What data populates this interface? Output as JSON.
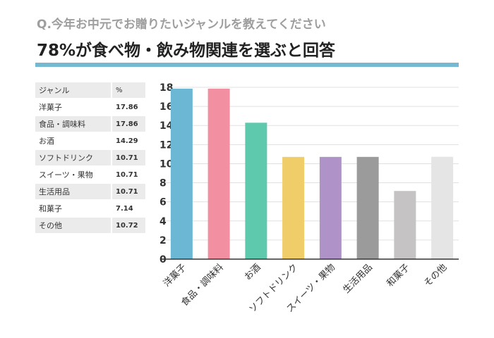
{
  "header": {
    "question": "Q.今年お中元でお贈りたいジャンルを教えてください",
    "headline": "78%が食べ物・飲み物関連を選ぶと回答",
    "accent_color": "#74b9d1"
  },
  "table": {
    "col_genre": "ジャンル",
    "col_pct": "%",
    "rows": [
      {
        "genre": "洋菓子",
        "pct": "17.86"
      },
      {
        "genre": "食品・調味料",
        "pct": "17.86"
      },
      {
        "genre": "お酒",
        "pct": "14.29"
      },
      {
        "genre": "ソフトドリンク",
        "pct": "10.71"
      },
      {
        "genre": "スイーツ・果物",
        "pct": "10.71"
      },
      {
        "genre": "生活用品",
        "pct": "10.71"
      },
      {
        "genre": "和菓子",
        "pct": "7.14"
      },
      {
        "genre": "その他",
        "pct": "10.72"
      }
    ]
  },
  "chart_data": {
    "type": "bar",
    "title": "",
    "xlabel": "",
    "ylabel": "",
    "categories": [
      "洋菓子",
      "食品・調味料",
      "お酒",
      "ソフトドリンク",
      "スイーツ・果物",
      "生活用品",
      "和菓子",
      "その他"
    ],
    "values": [
      17.86,
      17.86,
      14.29,
      10.71,
      10.71,
      10.71,
      7.14,
      10.72
    ],
    "colors": [
      "#6cb8d4",
      "#f28fa1",
      "#5ec9ad",
      "#f0cd68",
      "#ae92c8",
      "#9b9b9b",
      "#c5c3c4",
      "#e5e5e5"
    ],
    "ylim": [
      0,
      18
    ],
    "yticks": [
      0,
      2,
      4,
      6,
      8,
      10,
      12,
      14,
      16,
      18
    ],
    "grid": true,
    "legend": "none"
  }
}
